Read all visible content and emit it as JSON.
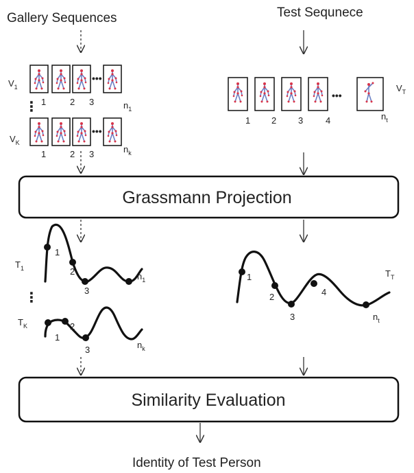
{
  "labels": {
    "gallery_title": "Gallery  Sequences",
    "test_title": "Test Sequnece",
    "grassmann": "Grassmann Projection",
    "similarity": "Similarity Evaluation",
    "identity": "Identity  of Test Person"
  },
  "gallery": {
    "v1": {
      "main": "V",
      "sub": "1"
    },
    "vk": {
      "main": "V",
      "sub": "K"
    },
    "row1_numbers": [
      "1",
      "2",
      "3"
    ],
    "row1_end": {
      "main": "n",
      "sub": "1"
    },
    "rowk_numbers": [
      "1",
      "2",
      "3"
    ],
    "rowk_end": {
      "main": "n",
      "sub": "k"
    }
  },
  "test": {
    "vt": {
      "main": "V",
      "sub": "T"
    },
    "numbers": [
      "1",
      "2",
      "3",
      "4"
    ],
    "end": {
      "main": "n",
      "sub": "t"
    }
  },
  "trajectories": {
    "t1": {
      "main": "T",
      "sub": "1",
      "points": [
        "1",
        "2",
        "3"
      ],
      "end": {
        "main": "n",
        "sub": "1"
      }
    },
    "tk": {
      "main": "T",
      "sub": "K",
      "points": [
        "1",
        "2",
        "3"
      ],
      "end": {
        "main": "n",
        "sub": "k"
      }
    },
    "tt": {
      "main": "T",
      "sub": "T",
      "points": [
        "1",
        "2",
        "3",
        "4"
      ],
      "end": {
        "main": "n",
        "sub": "t"
      }
    }
  },
  "symbols": {
    "ellipsis": "•••",
    "vdots": "⋮"
  },
  "colors": {
    "joint": "#d8344a",
    "bone": "#6b7fc4",
    "stroke": "#111111"
  }
}
